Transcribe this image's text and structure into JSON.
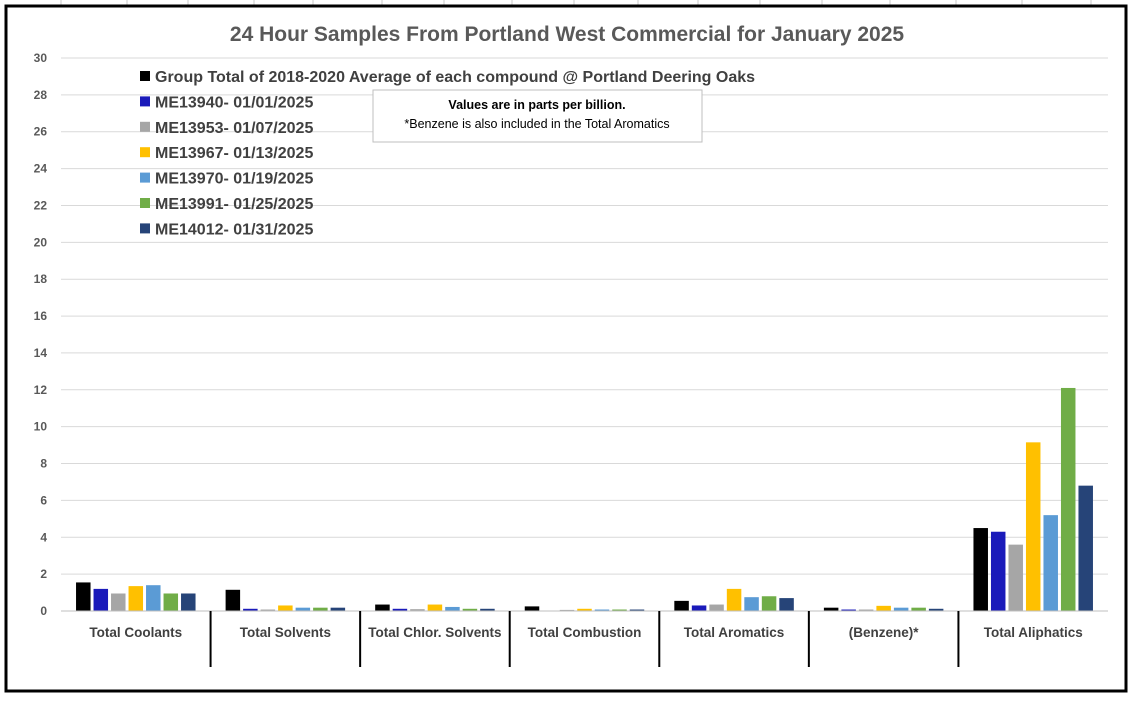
{
  "chart_data": {
    "type": "bar",
    "title": "24 Hour Samples From Portland West Commercial for January 2025",
    "xlabel": "",
    "ylabel": "",
    "ylim": [
      0,
      30
    ],
    "yticks": [
      0,
      2,
      4,
      6,
      8,
      10,
      12,
      14,
      16,
      18,
      20,
      22,
      24,
      26,
      28,
      30
    ],
    "grid": true,
    "legend_position": "top-left",
    "categories": [
      "Total Coolants",
      "Total Solvents",
      "Total Chlor. Solvents",
      "Total Combustion",
      "Total Aromatics",
      "(Benzene)*",
      "Total Aliphatics"
    ],
    "series": [
      {
        "name": "Group Total of 2018-2020 Average of each compound @ Portland Deering Oaks",
        "color": "#000000",
        "values": [
          1.55,
          1.15,
          0.35,
          0.25,
          0.55,
          0.18,
          4.5
        ]
      },
      {
        "name": "ME13940- 01/01/2025",
        "color": "#1a1aba",
        "values": [
          1.2,
          0.12,
          0.12,
          0.0,
          0.3,
          0.08,
          4.3
        ]
      },
      {
        "name": "ME13953- 01/07/2025",
        "color": "#a6a6a6",
        "values": [
          0.95,
          0.08,
          0.1,
          0.06,
          0.35,
          0.08,
          3.6
        ]
      },
      {
        "name": "ME13967- 01/13/2025",
        "color": "#ffc000",
        "values": [
          1.35,
          0.3,
          0.35,
          0.12,
          1.2,
          0.28,
          9.15
        ]
      },
      {
        "name": "ME13970- 01/19/2025",
        "color": "#5b9bd5",
        "values": [
          1.4,
          0.18,
          0.22,
          0.08,
          0.75,
          0.18,
          5.2
        ]
      },
      {
        "name": "ME13991- 01/25/2025",
        "color": "#70ad47",
        "values": [
          0.95,
          0.18,
          0.12,
          0.08,
          0.8,
          0.18,
          12.1
        ]
      },
      {
        "name": "ME14012- 01/31/2025",
        "color": "#264478",
        "values": [
          0.95,
          0.18,
          0.12,
          0.08,
          0.7,
          0.12,
          6.8
        ]
      }
    ],
    "annotation": {
      "line1": "Values are in parts per billion.",
      "line2": "*Benzene is also included in the Total Aromatics"
    }
  }
}
